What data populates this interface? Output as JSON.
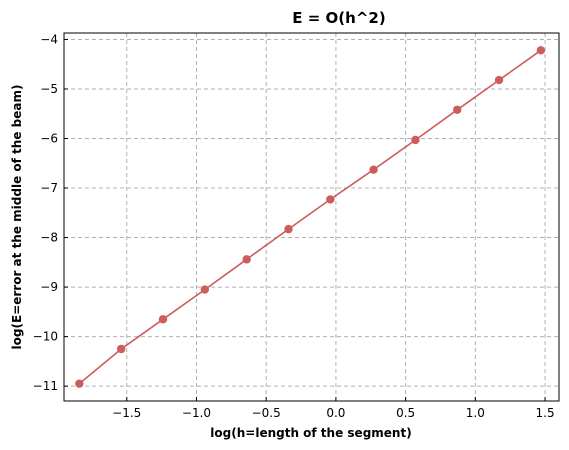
{
  "chart_data": {
    "type": "line",
    "title": "E = O(h^2)",
    "xlabel": "log(h=length of the segment)",
    "ylabel": "log(E=error at the middle of the beam)",
    "xlim": [
      -1.95,
      1.6
    ],
    "ylim": [
      -11.3,
      -3.87
    ],
    "xticks": [
      -1.5,
      -1.0,
      -0.5,
      0.0,
      0.5,
      1.0,
      1.5
    ],
    "xtick_labels": [
      "−1.5",
      "−1.0",
      "−0.5",
      "0.0",
      "0.5",
      "1.0",
      "1.5"
    ],
    "yticks": [
      -11,
      -10,
      -9,
      -8,
      -7,
      -6,
      -5,
      -4
    ],
    "ytick_labels": [
      "−11",
      "−10",
      "−9",
      "−8",
      "−7",
      "−6",
      "−5",
      "−4"
    ],
    "grid": true,
    "series": [
      {
        "color": "#cd5c5c",
        "marker": "circle",
        "x": [
          -1.84,
          -1.54,
          -1.24,
          -0.94,
          -0.64,
          -0.34,
          -0.04,
          0.27,
          0.57,
          0.87,
          1.17,
          1.47
        ],
        "y": [
          -10.95,
          -10.25,
          -9.65,
          -9.05,
          -8.44,
          -7.83,
          -7.23,
          -6.63,
          -6.03,
          -5.42,
          -4.82,
          -4.22
        ]
      }
    ]
  }
}
